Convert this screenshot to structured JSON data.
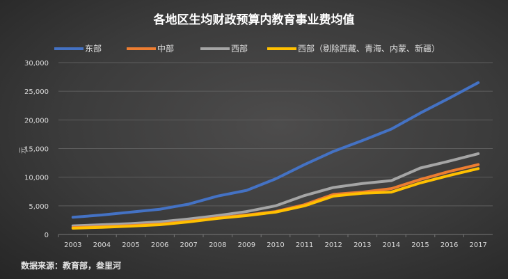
{
  "chart_data": {
    "type": "line",
    "title": "各地区生均财政预算内教育事业费均值",
    "ylabel": "元",
    "xlabel": "",
    "categories": [
      "2003",
      "2004",
      "2005",
      "2006",
      "2007",
      "2008",
      "2009",
      "2010",
      "2011",
      "2012",
      "2013",
      "2014",
      "2015",
      "2016",
      "2017"
    ],
    "ylim": [
      0,
      30000
    ],
    "yticks": [
      "0",
      "5,000",
      "10,000",
      "15,000",
      "20,000",
      "25,000",
      "30,000"
    ],
    "grid": true,
    "legend_position": "top",
    "series": [
      {
        "name": "东部",
        "color": "#4472c4",
        "values": [
          3000,
          3400,
          3900,
          4400,
          5300,
          6700,
          7700,
          9700,
          12200,
          14500,
          16400,
          18400,
          21200,
          23800,
          26500
        ]
      },
      {
        "name": "中部",
        "color": "#ed7d31",
        "values": [
          1200,
          1350,
          1550,
          1800,
          2300,
          2900,
          3400,
          4000,
          5200,
          7000,
          7400,
          8000,
          9600,
          11000,
          12200
        ]
      },
      {
        "name": "西部",
        "color": "#a5a5a5",
        "values": [
          1500,
          1700,
          1900,
          2200,
          2700,
          3300,
          4000,
          5000,
          6800,
          8200,
          8900,
          9400,
          11600,
          12800,
          14100
        ]
      },
      {
        "name": "西部（剔除西藏、青海、内蒙、新疆）",
        "color": "#ffc000",
        "values": [
          1100,
          1250,
          1450,
          1700,
          2200,
          2800,
          3300,
          3900,
          5000,
          6700,
          7200,
          7400,
          9000,
          10300,
          11500
        ]
      }
    ]
  },
  "source": "数据来源：教育部，叁里河"
}
